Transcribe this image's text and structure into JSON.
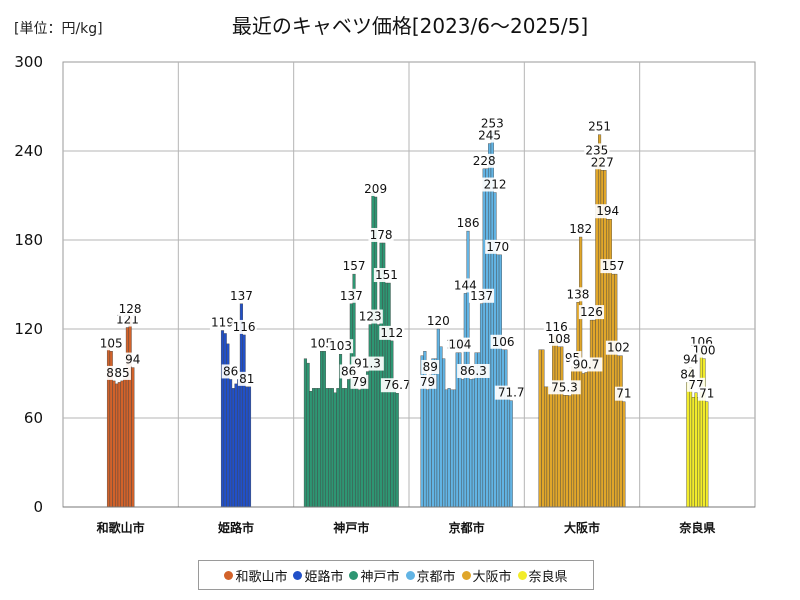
{
  "unit_label": "[単位：円/kg]",
  "chart_data": {
    "type": "bar",
    "title": "最近のキャベツ価格[2023/6～2025/5]",
    "ylim": [
      0,
      300
    ],
    "yticks": [
      "0",
      "60",
      "120",
      "180",
      "240",
      "300"
    ],
    "grid": true,
    "legend_position": "bottom",
    "series": [
      {
        "name": "和歌山市",
        "color": "#d2622a",
        "values": [
          110,
          105,
          85,
          83,
          84,
          85,
          87,
          121,
          128,
          94
        ]
      },
      {
        "name": "姫路市",
        "color": "#2150c8",
        "values": [
          119,
          117,
          110,
          86,
          80,
          83,
          86,
          137,
          116,
          81,
          81
        ]
      },
      {
        "name": "神戸市",
        "color": "#2e9673",
        "values": [
          100,
          97,
          78,
          80,
          80,
          80,
          105,
          105,
          80,
          80,
          80,
          77,
          80,
          103,
          80,
          80,
          86,
          137,
          157,
          80,
          79,
          86,
          80,
          91.3,
          123,
          212,
          209,
          123,
          178,
          178,
          151,
          151,
          112,
          80,
          76.7
        ]
      },
      {
        "name": "京都市",
        "color": "#62b4e4",
        "values": [
          102,
          105,
          79,
          89,
          100,
          100,
          120,
          108,
          100,
          79,
          80,
          79,
          79,
          104,
          104,
          86,
          144,
          186,
          86,
          86.3,
          104,
          104,
          137,
          228,
          228,
          245,
          253,
          212,
          170,
          170,
          106,
          106,
          75,
          71.7
        ]
      },
      {
        "name": "大阪市",
        "color": "#e0a62a",
        "values": [
          106,
          106,
          81,
          81,
          81,
          115,
          116,
          108,
          108,
          75.3,
          75.3,
          75,
          95,
          93,
          138,
          182,
          90,
          90.7,
          95,
          126,
          126,
          235,
          251,
          227,
          227,
          194,
          194,
          157,
          157,
          102,
          102,
          71
        ]
      },
      {
        "name": "奈良県",
        "color": "#f2ec2a",
        "values": [
          84,
          94,
          74,
          77,
          74,
          106,
          100,
          71
        ]
      }
    ],
    "data_labels": [
      {
        "series": "和歌山市",
        "texts": [
          "105",
          "85",
          "85",
          "121",
          "128",
          "94"
        ]
      },
      {
        "series": "姫路市",
        "texts": [
          "119",
          "137",
          "86",
          "116",
          "81"
        ]
      },
      {
        "series": "神戸市",
        "texts": [
          "209",
          "178",
          "157",
          "151",
          "137",
          "123",
          "112",
          "105",
          "103",
          "91.3",
          "86",
          "79",
          "76.7"
        ]
      },
      {
        "series": "京都市",
        "texts": [
          "253",
          "245",
          "228",
          "212",
          "186",
          "170",
          "144",
          "137",
          "120",
          "106",
          "104",
          "104",
          "89",
          "86.3",
          "79",
          "71.7"
        ]
      },
      {
        "series": "大阪市",
        "texts": [
          "251",
          "235",
          "227",
          "194",
          "182",
          "157",
          "138",
          "126",
          "116",
          "108",
          "102",
          "95",
          "90.7",
          "75.3",
          "71"
        ]
      },
      {
        "series": "奈良県",
        "texts": [
          "106",
          "100",
          "94",
          "84",
          "77",
          "71"
        ]
      }
    ]
  }
}
